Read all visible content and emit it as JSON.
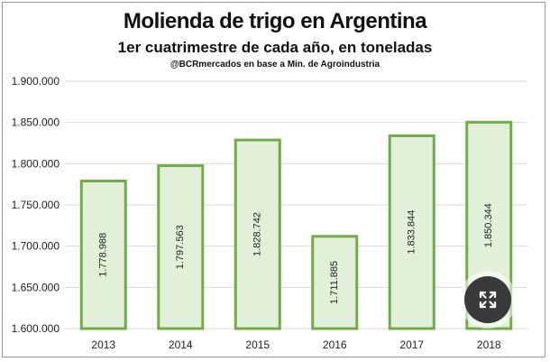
{
  "chart_data": {
    "type": "bar",
    "title": "Molienda de trigo en Argentina",
    "subtitle": "1er cuatrimestre de cada año, en toneladas",
    "source": "@BCRmercados en base a Min. de Agroindustria",
    "categories": [
      "2013",
      "2014",
      "2015",
      "2016",
      "2017",
      "2018"
    ],
    "values": [
      1778988,
      1797563,
      1828742,
      1711885,
      1833844,
      1850344
    ],
    "value_labels": [
      "1.778.988",
      "1.797.563",
      "1.828.742",
      "1.711.885",
      "1.833.844",
      "1.850.344"
    ],
    "ylim": [
      1600000,
      1900000
    ],
    "yticks": [
      1600000,
      1650000,
      1700000,
      1750000,
      1800000,
      1850000,
      1900000
    ],
    "ytick_labels": [
      "1.600.000",
      "1.650.000",
      "1.700.000",
      "1.750.000",
      "1.800.000",
      "1.850.000",
      "1.900.000"
    ],
    "grid": true,
    "bar_fill": "#e2efd9",
    "bar_stroke": "#70ad47",
    "grid_color": "#d9d9d9"
  },
  "overlay": {
    "icon": "expand-icon"
  }
}
